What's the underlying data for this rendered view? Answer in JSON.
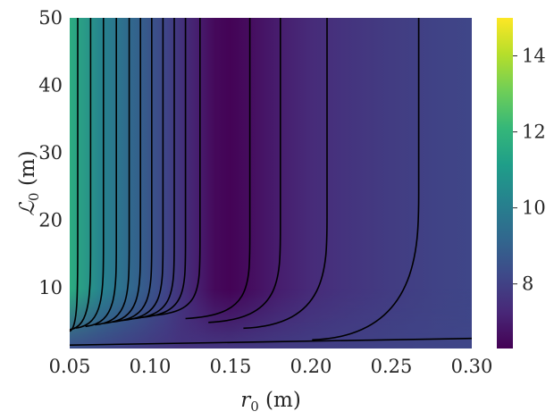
{
  "chart_data": {
    "type": "heatmap",
    "title": "",
    "xlabel": "r_0 (m)",
    "xlabel_parts": {
      "symbol": "r",
      "subscript": "0",
      "unit": " (m)"
    },
    "ylabel": "ℒ_0 (m)",
    "ylabel_parts": {
      "symbol": "ℒ",
      "subscript": "0",
      "unit": " (m)"
    },
    "xlim": [
      0.05,
      0.3
    ],
    "ylim": [
      1,
      50
    ],
    "x_ticks": [
      0.05,
      0.1,
      0.15,
      0.2,
      0.25,
      0.3
    ],
    "x_tick_labels": [
      "0.05",
      "0.10",
      "0.15",
      "0.20",
      "0.25",
      "0.30"
    ],
    "y_ticks": [
      10,
      20,
      30,
      40,
      50
    ],
    "y_tick_labels": [
      "10",
      "20",
      "30",
      "40",
      "50"
    ],
    "colormap": "viridis",
    "colormap_stops": [
      "#440154",
      "#482878",
      "#3e4989",
      "#31688e",
      "#26828e",
      "#1f9e89",
      "#35b779",
      "#6ece58",
      "#b5de2b",
      "#fde725"
    ],
    "colorbar": {
      "range": [
        6.3,
        15
      ],
      "ticks": [
        8,
        10,
        12,
        14
      ],
      "tick_labels": [
        "8",
        "10",
        "12",
        "14"
      ]
    },
    "field_profile_at_large_L": {
      "x": [
        0.05,
        0.07,
        0.09,
        0.11,
        0.13,
        0.14,
        0.15,
        0.16,
        0.18,
        0.2,
        0.22,
        0.25,
        0.28,
        0.3
      ],
      "value": [
        11.7,
        10.2,
        9.1,
        8.1,
        7.0,
        6.5,
        6.35,
        6.55,
        7.0,
        7.35,
        7.6,
        7.85,
        8.05,
        8.15
      ]
    },
    "field_profile_at_small_L": {
      "x": [
        0.05,
        0.08,
        0.12,
        0.16,
        0.2,
        0.25,
        0.3
      ],
      "value": [
        8.4,
        8.0,
        7.6,
        7.75,
        7.9,
        8.05,
        8.15
      ]
    },
    "contour_lines": [
      {
        "x_asymptote": 0.055
      },
      {
        "x_asymptote": 0.063
      },
      {
        "x_asymptote": 0.071
      },
      {
        "x_asymptote": 0.079
      },
      {
        "x_asymptote": 0.087
      },
      {
        "x_asymptote": 0.094
      },
      {
        "x_asymptote": 0.101
      },
      {
        "x_asymptote": 0.108
      },
      {
        "x_asymptote": 0.115
      },
      {
        "x_asymptote": 0.122
      },
      {
        "x_asymptote": 0.131
      },
      {
        "x_asymptote": 0.162
      },
      {
        "x_asymptote": 0.181
      },
      {
        "x_asymptote": 0.21
      },
      {
        "x_asymptote": 0.267
      },
      {
        "x_start": 0.05,
        "y_start": 1.5,
        "x_end": 0.3,
        "y_end": 2.5
      }
    ]
  }
}
